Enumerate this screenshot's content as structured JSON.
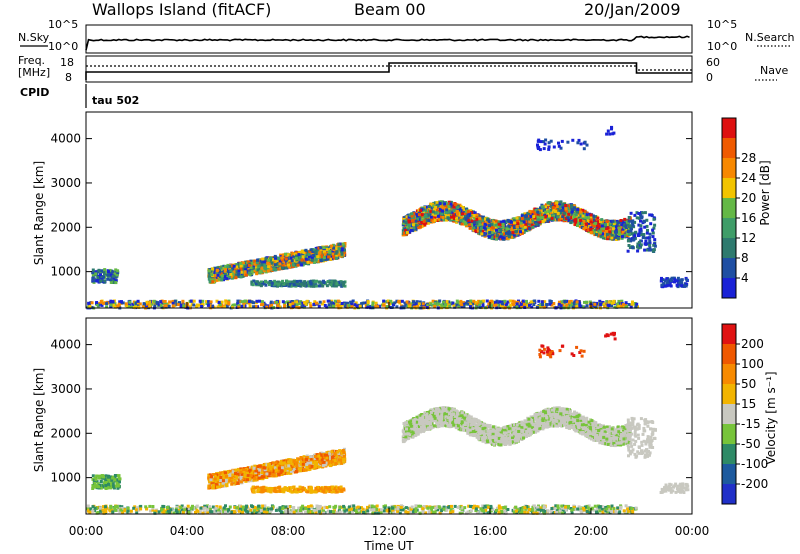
{
  "header": {
    "station": "Wallops Island (fitACF)",
    "beam": "Beam 00",
    "date": "20/Jan/2009"
  },
  "top_panels": {
    "nsky_label": "N.Sky",
    "nsearch_label": "N.Search",
    "freq_label_1": "Freq.",
    "freq_label_2": "[MHz]",
    "cpid_label": "CPID",
    "nave_label": "Nave",
    "noise_top_tick": "10^5",
    "noise_bottom_tick": "10^0",
    "freq_top_tick": "18",
    "freq_bottom_tick": "8",
    "nave_top_tick": "60",
    "nave_bottom_tick": "0",
    "cpid_text": "tau 502"
  },
  "chart_data": [
    {
      "type": "heatmap",
      "name": "power",
      "ylabel": "Slant Range [km]",
      "y_ticks": [
        "1000",
        "2000",
        "3000",
        "4000"
      ],
      "y_tick_values": [
        1000,
        2000,
        3000,
        4000
      ],
      "ylim": [
        180,
        4600
      ],
      "xlim_hours": [
        0,
        24
      ],
      "colorbar_label": "Power [dB]",
      "colorbar_ticks": [
        "4",
        "8",
        "12",
        "16",
        "20",
        "24",
        "28"
      ],
      "colorbar_range": [
        0,
        32
      ],
      "colors": [
        "#1a22d6",
        "#1f4fa3",
        "#2e7a6e",
        "#3f9d68",
        "#64b846",
        "#f2c400",
        "#f78800",
        "#ef5a00",
        "#de1010"
      ],
      "grid": false
    },
    {
      "type": "heatmap",
      "name": "velocity",
      "ylabel": "Slant Range [km]",
      "xlabel": "Time UT",
      "x_ticks": [
        "00:00",
        "04:00",
        "08:00",
        "12:00",
        "16:00",
        "20:00",
        "00:00"
      ],
      "x_tick_hours": [
        0,
        4,
        8,
        12,
        16,
        20,
        24
      ],
      "y_ticks": [
        "1000",
        "2000",
        "3000",
        "4000"
      ],
      "y_tick_values": [
        1000,
        2000,
        3000,
        4000
      ],
      "ylim": [
        180,
        4600
      ],
      "xlim_hours": [
        0,
        24
      ],
      "colorbar_label": "Velocity [m s⁻¹]",
      "colorbar_ticks": [
        "200",
        "100",
        "50",
        "15",
        "-15",
        "-50",
        "-100",
        "-200"
      ],
      "colors": [
        "#2030c8",
        "#1d5a9e",
        "#2e8a66",
        "#77c43a",
        "#c8c8c0",
        "#f2b400",
        "#f78a00",
        "#ef5800",
        "#e01212"
      ],
      "grid": false
    }
  ]
}
